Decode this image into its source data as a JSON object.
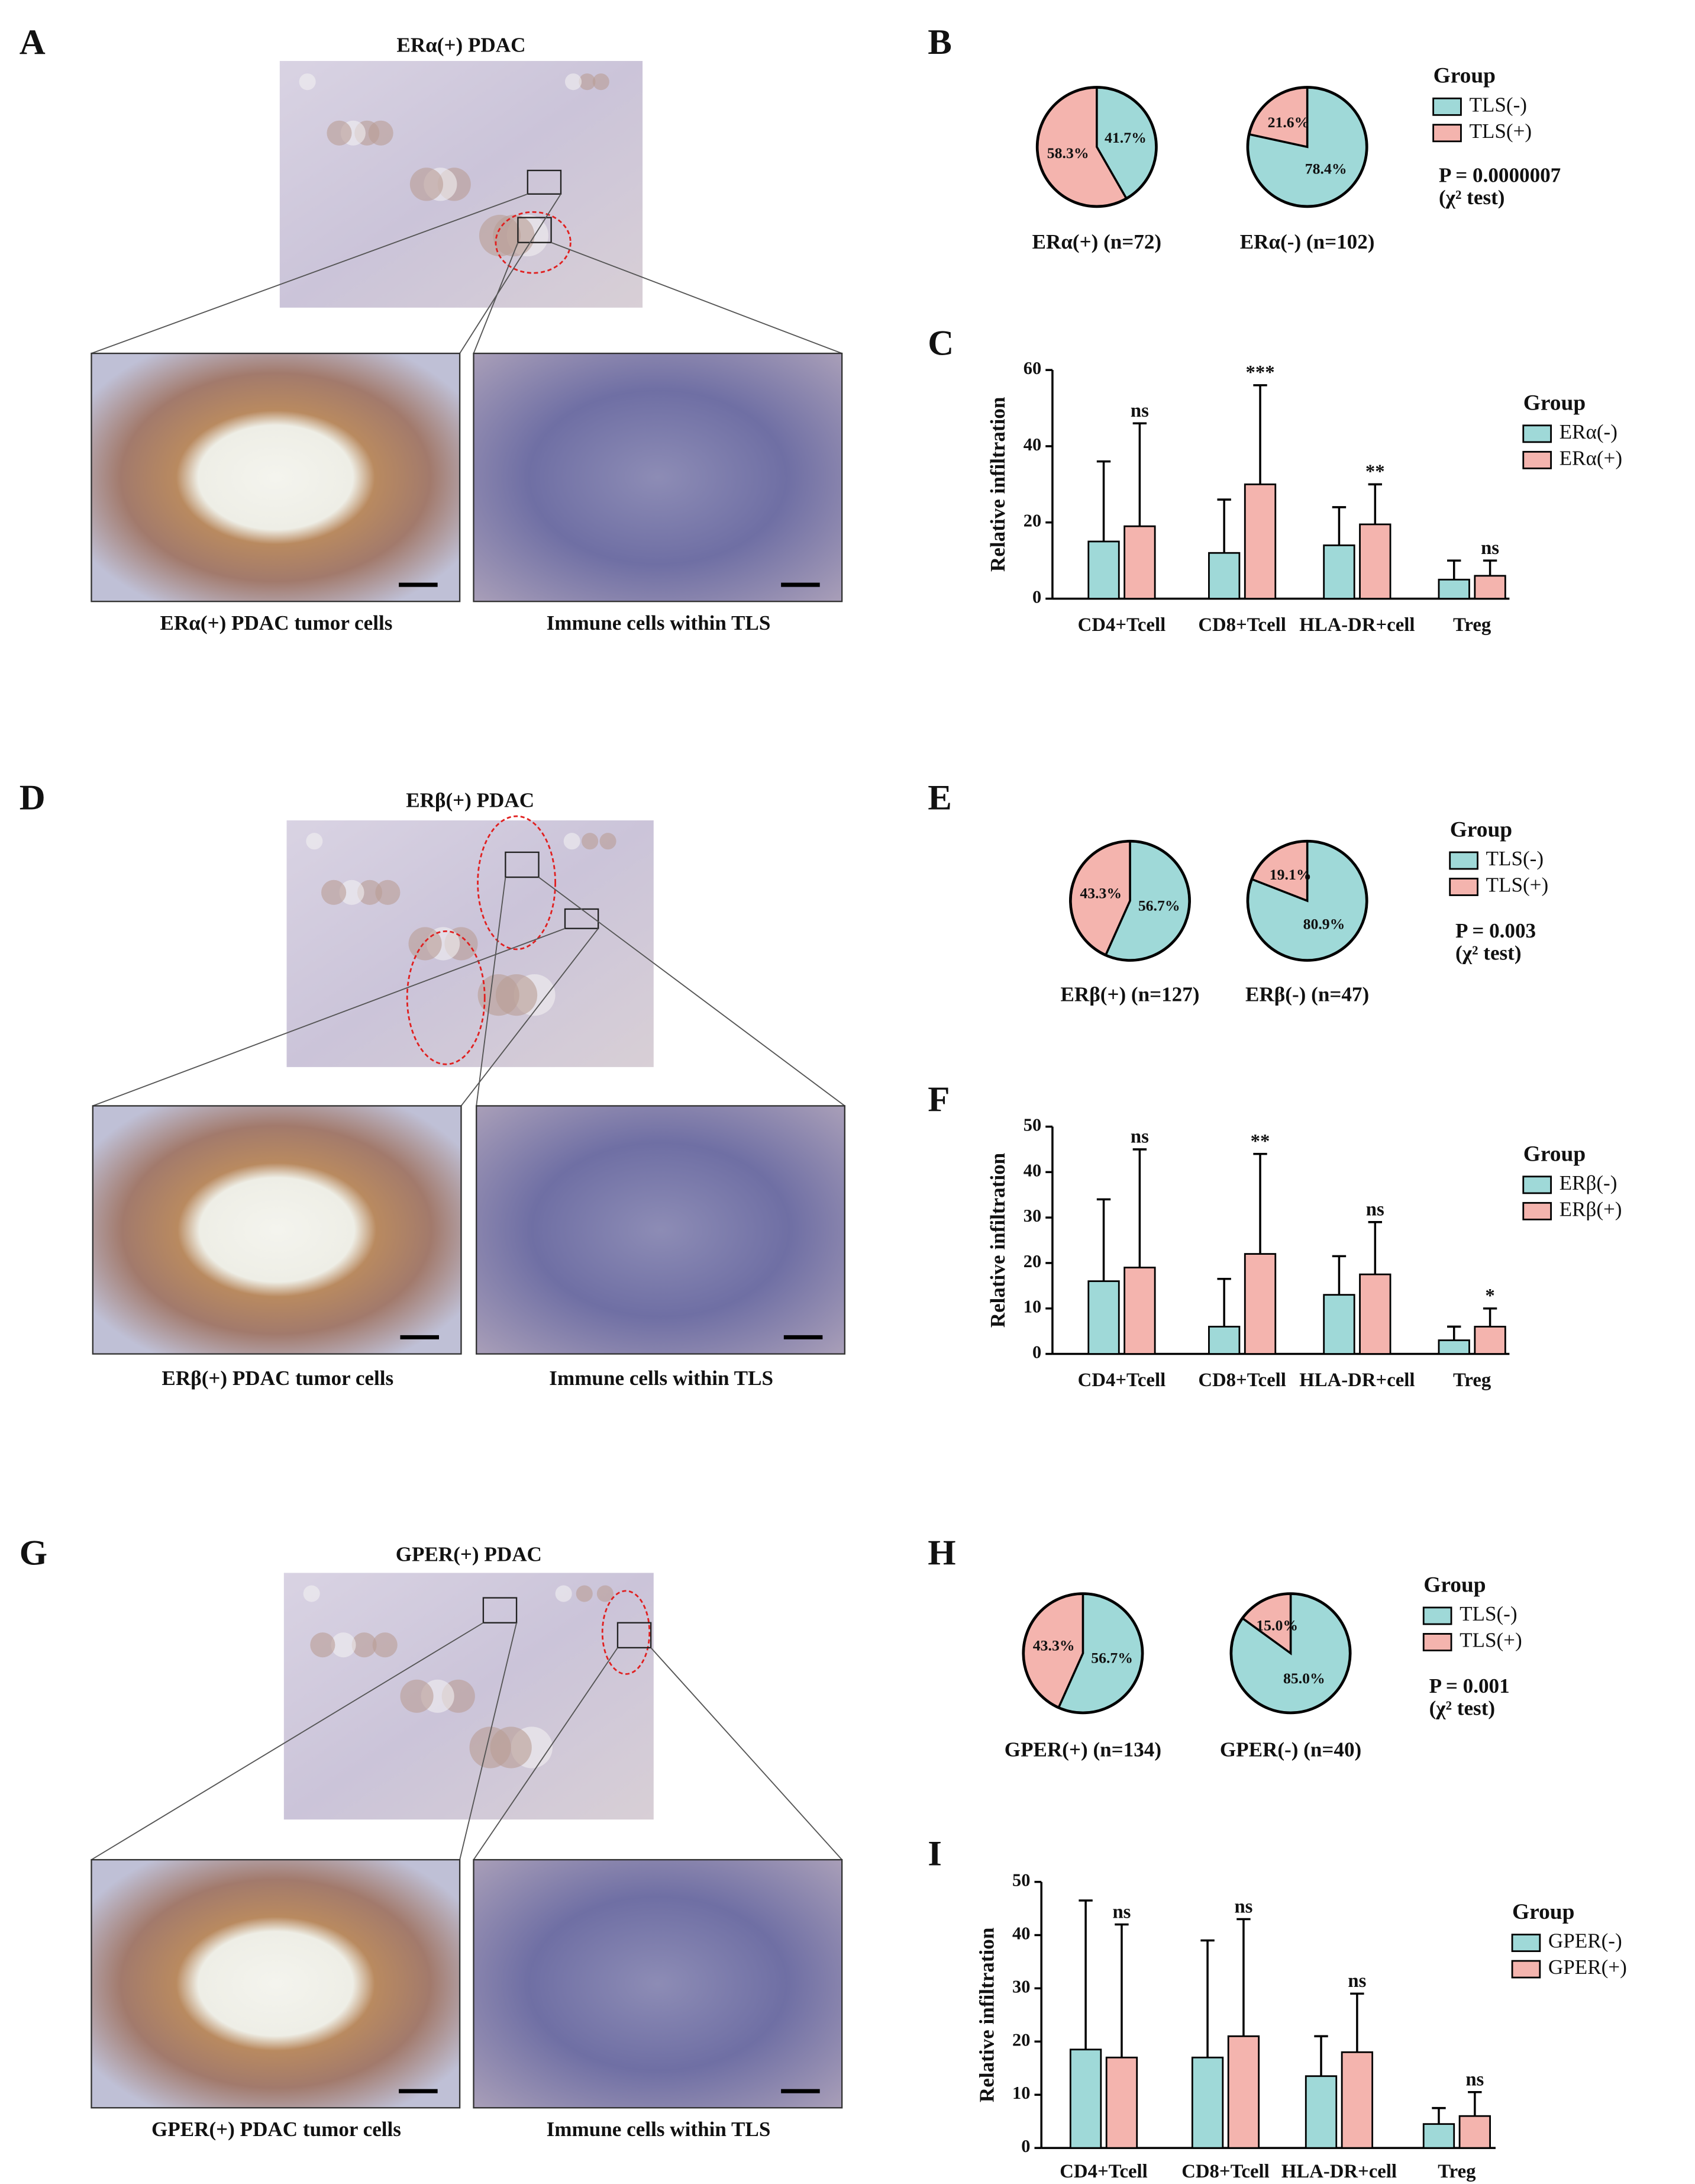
{
  "images": [
    {
      "letter": "A",
      "title": "ERα(+) PDAC",
      "captions": [
        "ERα(+) PDAC tumor cells",
        "Immune cells within TLS"
      ]
    },
    {
      "letter": "D",
      "title": "ERβ(+) PDAC",
      "captions": [
        "ERβ(+) PDAC tumor cells",
        "Immune cells within TLS"
      ]
    },
    {
      "letter": "G",
      "title": "GPER(+) PDAC",
      "captions": [
        "GPER(+) PDAC tumor cells",
        "Immune cells within TLS"
      ]
    }
  ],
  "chart_data": [
    {
      "type": "pie",
      "panel": "B",
      "legend_title": "Group",
      "categories": [
        "TLS(-)",
        "TLS(+)"
      ],
      "colors": [
        "#9fd9d8",
        "#f4b4ae"
      ],
      "pies": [
        {
          "label": "ERα(+) (n=72)",
          "values": [
            41.7,
            58.3
          ],
          "value_labels": [
            "41.7%",
            "58.3%"
          ]
        },
        {
          "label": "ERα(-) (n=102)",
          "values": [
            78.4,
            21.6
          ],
          "value_labels": [
            "78.4%",
            "21.6%"
          ]
        }
      ],
      "annotations": [
        "P = 0.0000007",
        "(χ² test)"
      ]
    },
    {
      "type": "bar",
      "panel": "C",
      "ylabel": "Relative infiltration",
      "legend_title": "Group",
      "categories": [
        "CD4+Tcell",
        "CD8+Tcell",
        "HLA-DR+cell",
        "Treg"
      ],
      "series": [
        {
          "name": "ERα(-)",
          "color": "#9fd9d8",
          "values": [
            15,
            12,
            14,
            5
          ],
          "errors": [
            21,
            14,
            10,
            5
          ]
        },
        {
          "name": "ERα(+)",
          "color": "#f4b4ae",
          "values": [
            19,
            30,
            19.5,
            6
          ],
          "errors": [
            27,
            26,
            10.5,
            4
          ],
          "significance": [
            "ns",
            "***",
            "**",
            "ns"
          ]
        }
      ],
      "ylim": [
        0,
        60
      ],
      "yticks": [
        0,
        20,
        40,
        60
      ]
    },
    {
      "type": "pie",
      "panel": "E",
      "legend_title": "Group",
      "categories": [
        "TLS(-)",
        "TLS(+)"
      ],
      "colors": [
        "#9fd9d8",
        "#f4b4ae"
      ],
      "pies": [
        {
          "label": "ERβ(+) (n=127)",
          "values": [
            56.7,
            43.3
          ],
          "value_labels": [
            "56.7%",
            "43.3%"
          ]
        },
        {
          "label": "ERβ(-) (n=47)",
          "values": [
            80.9,
            19.1
          ],
          "value_labels": [
            "80.9%",
            "19.1%"
          ]
        }
      ],
      "annotations": [
        "P = 0.003",
        "(χ² test)"
      ]
    },
    {
      "type": "bar",
      "panel": "F",
      "ylabel": "Relative infiltration",
      "legend_title": "Group",
      "categories": [
        "CD4+Tcell",
        "CD8+Tcell",
        "HLA-DR+cell",
        "Treg"
      ],
      "series": [
        {
          "name": "ERβ(-)",
          "color": "#9fd9d8",
          "values": [
            16,
            6,
            13,
            3
          ],
          "errors": [
            18,
            10.5,
            8.5,
            3
          ]
        },
        {
          "name": "ERβ(+)",
          "color": "#f4b4ae",
          "values": [
            19,
            22,
            17.5,
            6
          ],
          "errors": [
            26,
            22,
            11.5,
            4
          ],
          "significance": [
            "ns",
            "**",
            "ns",
            "*"
          ]
        }
      ],
      "ylim": [
        0,
        50
      ],
      "yticks": [
        0,
        10,
        20,
        30,
        40,
        50
      ]
    },
    {
      "type": "pie",
      "panel": "H",
      "legend_title": "Group",
      "categories": [
        "TLS(-)",
        "TLS(+)"
      ],
      "colors": [
        "#9fd9d8",
        "#f4b4ae"
      ],
      "pies": [
        {
          "label": "GPER(+) (n=134)",
          "values": [
            56.7,
            43.3
          ],
          "value_labels": [
            "56.7%",
            "43.3%"
          ]
        },
        {
          "label": "GPER(-) (n=40)",
          "values": [
            85.0,
            15.0
          ],
          "value_labels": [
            "85.0%",
            "15.0%"
          ]
        }
      ],
      "annotations": [
        "P = 0.001",
        "(χ² test)"
      ]
    },
    {
      "type": "bar",
      "panel": "I",
      "ylabel": "Relative infiltration",
      "legend_title": "Group",
      "categories": [
        "CD4+Tcell",
        "CD8+Tcell",
        "HLA-DR+cell",
        "Treg"
      ],
      "series": [
        {
          "name": "GPER(-)",
          "color": "#9fd9d8",
          "values": [
            18.5,
            17,
            13.5,
            4.5
          ],
          "errors": [
            28,
            22,
            7.5,
            3
          ]
        },
        {
          "name": "GPER(+)",
          "color": "#f4b4ae",
          "values": [
            17,
            21,
            18,
            6
          ],
          "errors": [
            25,
            22,
            11,
            4.5
          ],
          "significance": [
            "ns",
            "ns",
            "ns",
            "ns"
          ]
        }
      ],
      "ylim": [
        0,
        50
      ],
      "yticks": [
        0,
        10,
        20,
        30,
        40,
        50
      ]
    }
  ]
}
